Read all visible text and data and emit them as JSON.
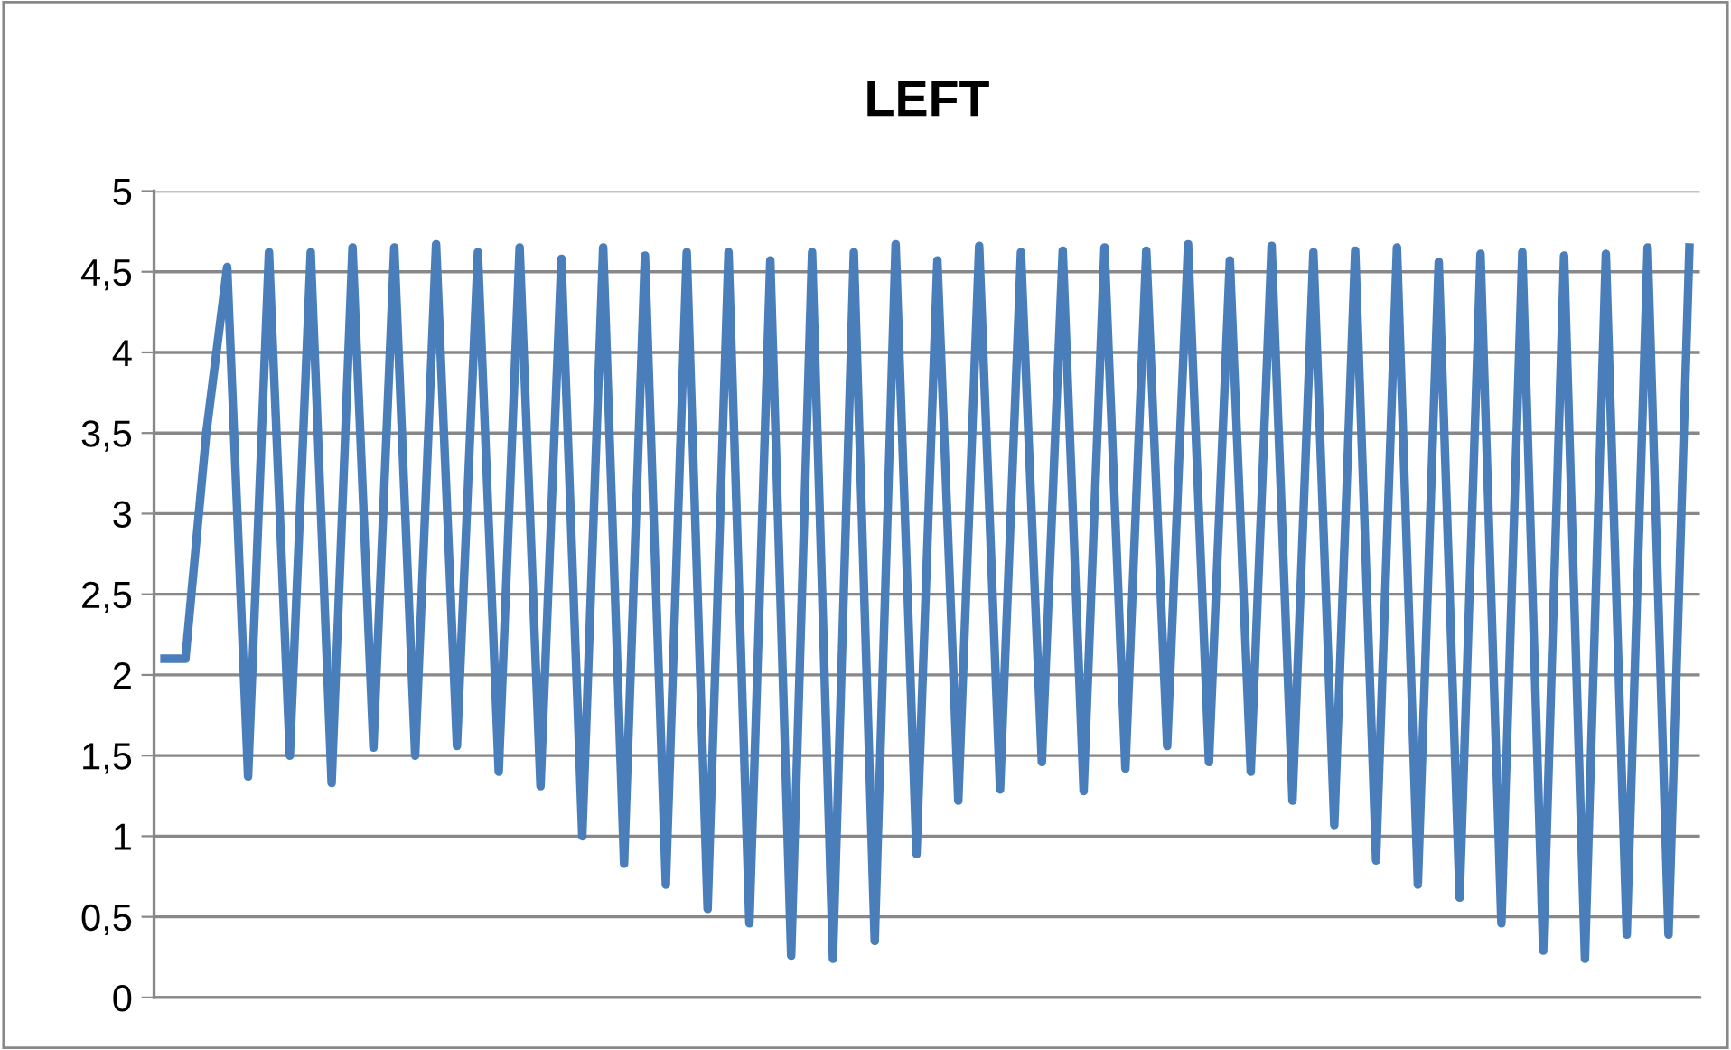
{
  "chart_data": {
    "type": "line",
    "title": "LEFT",
    "categories": [
      null,
      null,
      null,
      null,
      null,
      null,
      null,
      null,
      null,
      null,
      null,
      null,
      null,
      null,
      null,
      null,
      null,
      null,
      null,
      null,
      null,
      null,
      null,
      null,
      null,
      null,
      null,
      null,
      null,
      null,
      null,
      null,
      null,
      null,
      null,
      null,
      null,
      null,
      null,
      null,
      null,
      null,
      null,
      null,
      null,
      null,
      null,
      null,
      null,
      null,
      null,
      null,
      null,
      null,
      null,
      null,
      null,
      null,
      null,
      null,
      null,
      null,
      null,
      null,
      null,
      null,
      null,
      null,
      null,
      null,
      null,
      null,
      null,
      null
    ],
    "series": [
      {
        "color": "#4a7ebb",
        "values": [
          2.1,
          2.1,
          3.5,
          4.53,
          1.37,
          4.62,
          1.5,
          4.62,
          1.33,
          4.65,
          1.55,
          4.65,
          1.5,
          4.67,
          1.56,
          4.62,
          1.4,
          4.65,
          1.31,
          4.58,
          1.0,
          4.65,
          0.83,
          4.6,
          0.7,
          4.62,
          0.55,
          4.62,
          0.46,
          4.57,
          0.26,
          4.62,
          0.24,
          4.62,
          0.35,
          4.67,
          0.89,
          4.57,
          1.22,
          4.66,
          1.29,
          4.62,
          1.46,
          4.63,
          1.28,
          4.65,
          1.42,
          4.63,
          1.56,
          4.67,
          1.46,
          4.57,
          1.4,
          4.66,
          1.22,
          4.62,
          1.07,
          4.63,
          0.85,
          4.65,
          0.7,
          4.56,
          0.62,
          4.61,
          0.46,
          4.62,
          0.29,
          4.6,
          0.24,
          4.61,
          0.39,
          4.65,
          0.39,
          4.65
        ]
      }
    ],
    "ylim": [
      0,
      5
    ],
    "yticks": [
      0,
      {
        "value": 0.5,
        "label": "0,5"
      },
      1,
      {
        "value": 1.5,
        "label": "1,5"
      },
      2,
      {
        "value": 2.5,
        "label": "2,5"
      },
      3,
      {
        "value": 3.5,
        "label": "3,5"
      },
      4,
      {
        "value": 4.5,
        "label": "4,5"
      },
      5
    ],
    "grid": "y",
    "marker": "none",
    "line_style": "solid"
  }
}
